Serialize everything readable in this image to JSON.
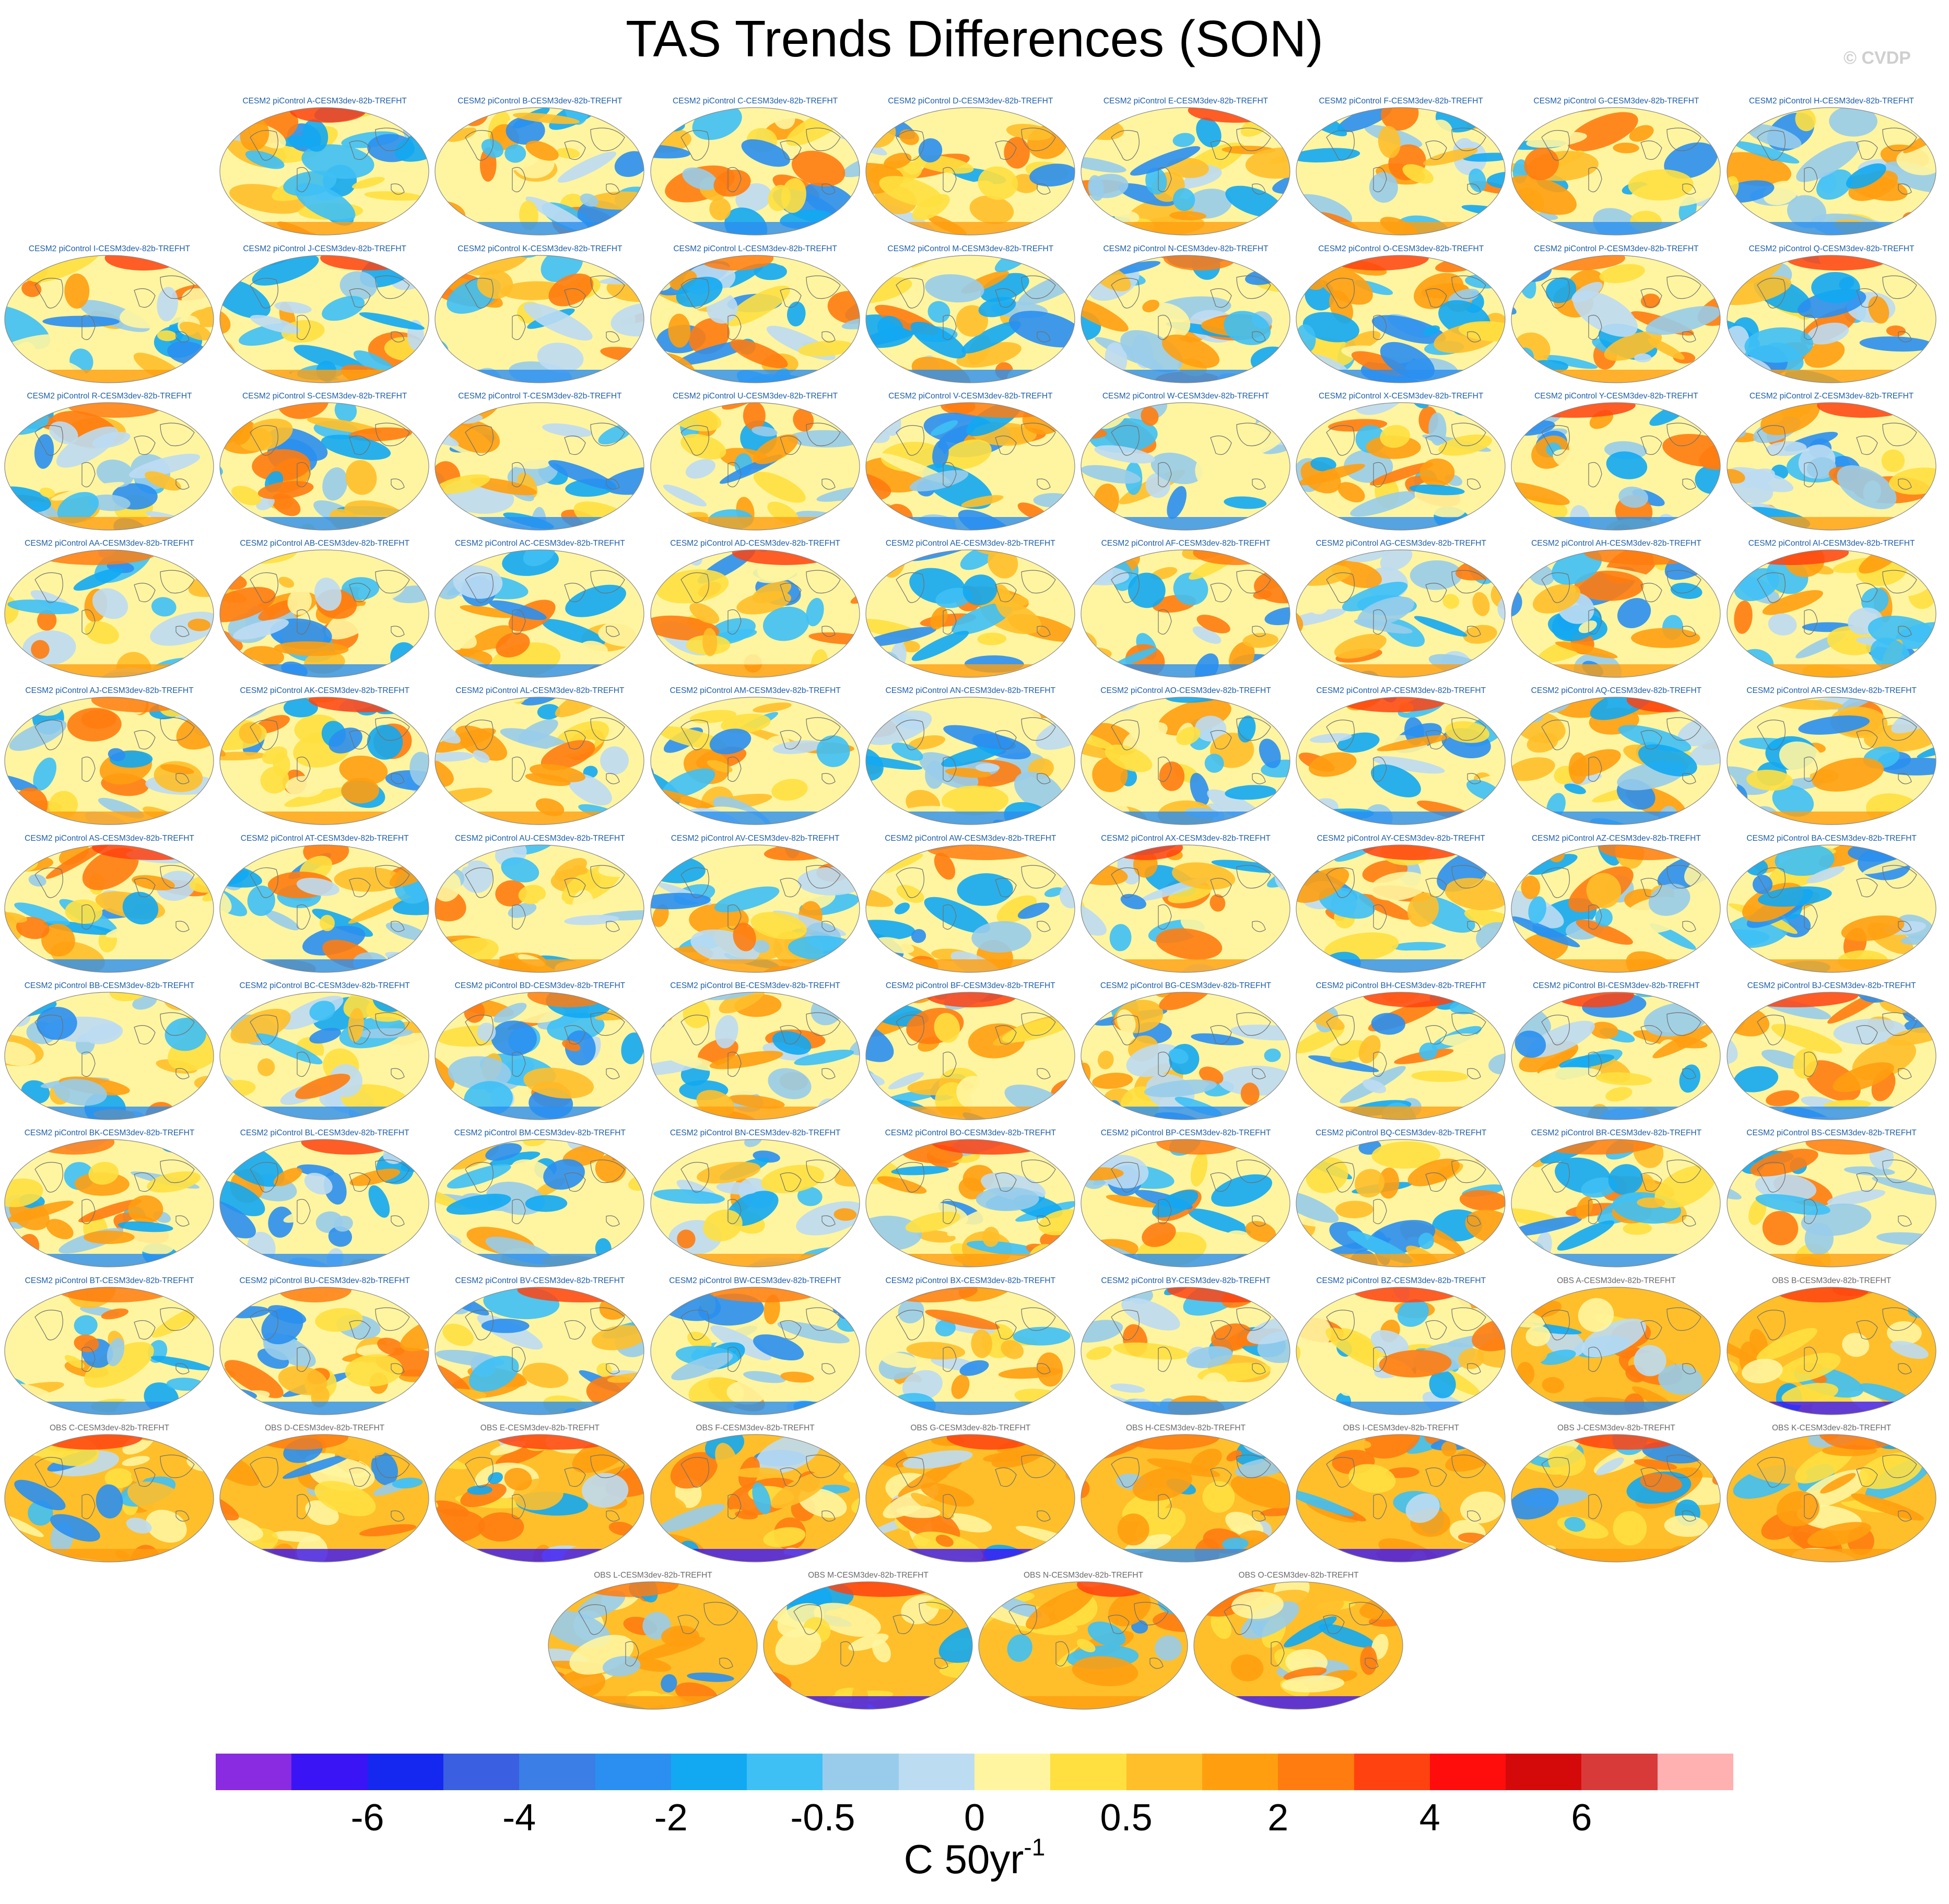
{
  "title": "TAS Trends Differences (SON)",
  "credit": "© CVDP",
  "panels": [
    "CESM2 piControl A-CESM3dev-82b-TREFHT",
    "CESM2 piControl B-CESM3dev-82b-TREFHT",
    "CESM2 piControl C-CESM3dev-82b-TREFHT",
    "CESM2 piControl D-CESM3dev-82b-TREFHT",
    "CESM2 piControl E-CESM3dev-82b-TREFHT",
    "CESM2 piControl F-CESM3dev-82b-TREFHT",
    "CESM2 piControl G-CESM3dev-82b-TREFHT",
    "CESM2 piControl H-CESM3dev-82b-TREFHT",
    "CESM2 piControl I-CESM3dev-82b-TREFHT",
    "CESM2 piControl J-CESM3dev-82b-TREFHT",
    "CESM2 piControl K-CESM3dev-82b-TREFHT",
    "CESM2 piControl L-CESM3dev-82b-TREFHT",
    "CESM2 piControl M-CESM3dev-82b-TREFHT",
    "CESM2 piControl N-CESM3dev-82b-TREFHT",
    "CESM2 piControl O-CESM3dev-82b-TREFHT",
    "CESM2 piControl P-CESM3dev-82b-TREFHT",
    "CESM2 piControl Q-CESM3dev-82b-TREFHT",
    "CESM2 piControl R-CESM3dev-82b-TREFHT",
    "CESM2 piControl S-CESM3dev-82b-TREFHT",
    "CESM2 piControl T-CESM3dev-82b-TREFHT",
    "CESM2 piControl U-CESM3dev-82b-TREFHT",
    "CESM2 piControl V-CESM3dev-82b-TREFHT",
    "CESM2 piControl W-CESM3dev-82b-TREFHT",
    "CESM2 piControl X-CESM3dev-82b-TREFHT",
    "CESM2 piControl Y-CESM3dev-82b-TREFHT",
    "CESM2 piControl Z-CESM3dev-82b-TREFHT",
    "CESM2 piControl AA-CESM3dev-82b-TREFHT",
    "CESM2 piControl AB-CESM3dev-82b-TREFHT",
    "CESM2 piControl AC-CESM3dev-82b-TREFHT",
    "CESM2 piControl AD-CESM3dev-82b-TREFHT",
    "CESM2 piControl AE-CESM3dev-82b-TREFHT",
    "CESM2 piControl AF-CESM3dev-82b-TREFHT",
    "CESM2 piControl AG-CESM3dev-82b-TREFHT",
    "CESM2 piControl AH-CESM3dev-82b-TREFHT",
    "CESM2 piControl AI-CESM3dev-82b-TREFHT",
    "CESM2 piControl AJ-CESM3dev-82b-TREFHT",
    "CESM2 piControl AK-CESM3dev-82b-TREFHT",
    "CESM2 piControl AL-CESM3dev-82b-TREFHT",
    "CESM2 piControl AM-CESM3dev-82b-TREFHT",
    "CESM2 piControl AN-CESM3dev-82b-TREFHT",
    "CESM2 piControl AO-CESM3dev-82b-TREFHT",
    "CESM2 piControl AP-CESM3dev-82b-TREFHT",
    "CESM2 piControl AQ-CESM3dev-82b-TREFHT",
    "CESM2 piControl AR-CESM3dev-82b-TREFHT",
    "CESM2 piControl AS-CESM3dev-82b-TREFHT",
    "CESM2 piControl AT-CESM3dev-82b-TREFHT",
    "CESM2 piControl AU-CESM3dev-82b-TREFHT",
    "CESM2 piControl AV-CESM3dev-82b-TREFHT",
    "CESM2 piControl AW-CESM3dev-82b-TREFHT",
    "CESM2 piControl AX-CESM3dev-82b-TREFHT",
    "CESM2 piControl AY-CESM3dev-82b-TREFHT",
    "CESM2 piControl AZ-CESM3dev-82b-TREFHT",
    "CESM2 piControl BA-CESM3dev-82b-TREFHT",
    "CESM2 piControl BB-CESM3dev-82b-TREFHT",
    "CESM2 piControl BC-CESM3dev-82b-TREFHT",
    "CESM2 piControl BD-CESM3dev-82b-TREFHT",
    "CESM2 piControl BE-CESM3dev-82b-TREFHT",
    "CESM2 piControl BF-CESM3dev-82b-TREFHT",
    "CESM2 piControl BG-CESM3dev-82b-TREFHT",
    "CESM2 piControl BH-CESM3dev-82b-TREFHT",
    "CESM2 piControl BI-CESM3dev-82b-TREFHT",
    "CESM2 piControl BJ-CESM3dev-82b-TREFHT",
    "CESM2 piControl BK-CESM3dev-82b-TREFHT",
    "CESM2 piControl BL-CESM3dev-82b-TREFHT",
    "CESM2 piControl BM-CESM3dev-82b-TREFHT",
    "CESM2 piControl BN-CESM3dev-82b-TREFHT",
    "CESM2 piControl BO-CESM3dev-82b-TREFHT",
    "CESM2 piControl BP-CESM3dev-82b-TREFHT",
    "CESM2 piControl BQ-CESM3dev-82b-TREFHT",
    "CESM2 piControl BR-CESM3dev-82b-TREFHT",
    "CESM2 piControl BS-CESM3dev-82b-TREFHT",
    "CESM2 piControl BT-CESM3dev-82b-TREFHT",
    "CESM2 piControl BU-CESM3dev-82b-TREFHT",
    "CESM2 piControl BV-CESM3dev-82b-TREFHT",
    "CESM2 piControl BW-CESM3dev-82b-TREFHT",
    "CESM2 piControl BX-CESM3dev-82b-TREFHT",
    "CESM2 piControl BY-CESM3dev-82b-TREFHT",
    "CESM2 piControl BZ-CESM3dev-82b-TREFHT",
    "OBS A-CESM3dev-82b-TREFHT",
    "OBS B-CESM3dev-82b-TREFHT",
    "OBS C-CESM3dev-82b-TREFHT",
    "OBS D-CESM3dev-82b-TREFHT",
    "OBS E-CESM3dev-82b-TREFHT",
    "OBS F-CESM3dev-82b-TREFHT",
    "OBS G-CESM3dev-82b-TREFHT",
    "OBS H-CESM3dev-82b-TREFHT",
    "OBS I-CESM3dev-82b-TREFHT",
    "OBS J-CESM3dev-82b-TREFHT",
    "OBS K-CESM3dev-82b-TREFHT",
    "OBS L-CESM3dev-82b-TREFHT",
    "OBS M-CESM3dev-82b-TREFHT",
    "OBS N-CESM3dev-82b-TREFHT",
    "OBS O-CESM3dev-82b-TREFHT"
  ],
  "colorbar": {
    "colors": [
      "#8a2be2",
      "#3a14f5",
      "#1528f0",
      "#3a5fe0",
      "#3a7ee6",
      "#2a8ff0",
      "#12a9f2",
      "#3ec0f5",
      "#98ccea",
      "#bcdcf2",
      "#fff5a0",
      "#ffe040",
      "#ffbf2a",
      "#ff9f10",
      "#ff7c10",
      "#ff4210",
      "#ff0d0d",
      "#d40a0a",
      "#d83a3a",
      "#ffb0b0"
    ],
    "tick_labels": [
      "-6",
      "-4",
      "-2",
      "-0.5",
      "0",
      "0.5",
      "2",
      "4",
      "6"
    ],
    "units": "C 50yr",
    "units_exponent": "-1"
  }
}
